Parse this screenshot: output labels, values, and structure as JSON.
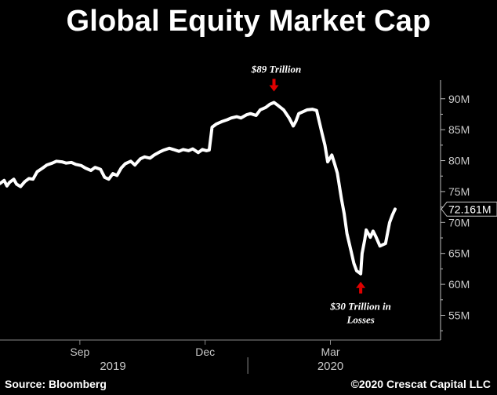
{
  "title": "Global Equity Market Cap",
  "source": "Source: Bloomberg",
  "copyright": "©2020 Crescat Capital LLC",
  "chart_data": {
    "type": "line",
    "title": "Global Equity Market Cap",
    "ylim": [
      51,
      92
    ],
    "y_ticks": [
      {
        "value": 90,
        "label": "90M"
      },
      {
        "value": 85,
        "label": "85M"
      },
      {
        "value": 80,
        "label": "80M"
      },
      {
        "value": 75,
        "label": "75M"
      },
      {
        "value": 70,
        "label": "70M"
      },
      {
        "value": 65,
        "label": "65M"
      },
      {
        "value": 60,
        "label": "60M"
      },
      {
        "value": 55,
        "label": "55M"
      }
    ],
    "x_domain": [
      "2019-07-05",
      "2020-05-20"
    ],
    "x_ticks": [
      {
        "date": "2019-09-01",
        "label": "Sep"
      },
      {
        "date": "2019-12-01",
        "label": "Dec"
      },
      {
        "date": "2020-03-01",
        "label": "Mar"
      }
    ],
    "year_labels": [
      {
        "date": "2019-09-25",
        "label": "2019"
      },
      {
        "date": "2020-03-01",
        "label": "2020"
      }
    ],
    "year_divider": "2020-01-01",
    "last_value_label": "72.161M",
    "last_value": 72.161,
    "series": [
      {
        "color": "#ffffff",
        "points": [
          [
            "2019-07-05",
            76.3
          ],
          [
            "2019-07-08",
            76.8
          ],
          [
            "2019-07-10",
            75.9
          ],
          [
            "2019-07-12",
            76.5
          ],
          [
            "2019-07-15",
            77.0
          ],
          [
            "2019-07-17",
            76.2
          ],
          [
            "2019-07-20",
            75.8
          ],
          [
            "2019-07-23",
            76.6
          ],
          [
            "2019-07-26",
            77.1
          ],
          [
            "2019-07-29",
            77.0
          ],
          [
            "2019-08-01",
            78.2
          ],
          [
            "2019-08-05",
            78.8
          ],
          [
            "2019-08-08",
            79.3
          ],
          [
            "2019-08-12",
            79.6
          ],
          [
            "2019-08-15",
            79.9
          ],
          [
            "2019-08-19",
            79.8
          ],
          [
            "2019-08-22",
            79.6
          ],
          [
            "2019-08-26",
            79.7
          ],
          [
            "2019-08-29",
            79.4
          ],
          [
            "2019-09-02",
            79.2
          ],
          [
            "2019-09-05",
            78.8
          ],
          [
            "2019-09-09",
            78.4
          ],
          [
            "2019-09-12",
            78.9
          ],
          [
            "2019-09-16",
            78.6
          ],
          [
            "2019-09-19",
            77.3
          ],
          [
            "2019-09-22",
            77.0
          ],
          [
            "2019-09-25",
            77.9
          ],
          [
            "2019-09-28",
            77.6
          ],
          [
            "2019-10-01",
            78.8
          ],
          [
            "2019-10-04",
            79.5
          ],
          [
            "2019-10-08",
            79.9
          ],
          [
            "2019-10-11",
            79.3
          ],
          [
            "2019-10-15",
            80.3
          ],
          [
            "2019-10-18",
            80.6
          ],
          [
            "2019-10-22",
            80.4
          ],
          [
            "2019-10-25",
            80.9
          ],
          [
            "2019-10-29",
            81.4
          ],
          [
            "2019-11-01",
            81.7
          ],
          [
            "2019-11-05",
            82.0
          ],
          [
            "2019-11-08",
            81.8
          ],
          [
            "2019-11-12",
            81.5
          ],
          [
            "2019-11-15",
            81.8
          ],
          [
            "2019-11-19",
            81.6
          ],
          [
            "2019-11-22",
            81.9
          ],
          [
            "2019-11-26",
            81.3
          ],
          [
            "2019-11-29",
            81.8
          ],
          [
            "2019-12-02",
            81.6
          ],
          [
            "2019-12-04",
            81.7
          ],
          [
            "2019-12-06",
            85.4
          ],
          [
            "2019-12-09",
            85.9
          ],
          [
            "2019-12-13",
            86.3
          ],
          [
            "2019-12-17",
            86.6
          ],
          [
            "2019-12-20",
            86.9
          ],
          [
            "2019-12-24",
            87.1
          ],
          [
            "2019-12-27",
            86.9
          ],
          [
            "2019-12-31",
            87.4
          ],
          [
            "2020-01-03",
            87.6
          ],
          [
            "2020-01-07",
            87.3
          ],
          [
            "2020-01-10",
            88.2
          ],
          [
            "2020-01-14",
            88.6
          ],
          [
            "2020-01-17",
            89.1
          ],
          [
            "2020-01-20",
            89.4
          ],
          [
            "2020-01-23",
            88.9
          ],
          [
            "2020-01-27",
            88.2
          ],
          [
            "2020-01-31",
            86.9
          ],
          [
            "2020-02-03",
            85.6
          ],
          [
            "2020-02-05",
            86.4
          ],
          [
            "2020-02-07",
            87.6
          ],
          [
            "2020-02-10",
            87.9
          ],
          [
            "2020-02-13",
            88.2
          ],
          [
            "2020-02-17",
            88.3
          ],
          [
            "2020-02-20",
            88.1
          ],
          [
            "2020-02-24",
            84.3
          ],
          [
            "2020-02-26",
            82.5
          ],
          [
            "2020-02-28",
            79.8
          ],
          [
            "2020-03-02",
            80.9
          ],
          [
            "2020-03-04",
            79.5
          ],
          [
            "2020-03-06",
            78.0
          ],
          [
            "2020-03-09",
            73.8
          ],
          [
            "2020-03-11",
            71.4
          ],
          [
            "2020-03-13",
            68.2
          ],
          [
            "2020-03-16",
            65.4
          ],
          [
            "2020-03-18",
            63.4
          ],
          [
            "2020-03-20",
            62.2
          ],
          [
            "2020-03-23",
            61.7
          ],
          [
            "2020-03-24",
            65.0
          ],
          [
            "2020-03-26",
            67.3
          ],
          [
            "2020-03-27",
            68.8
          ],
          [
            "2020-03-30",
            67.6
          ],
          [
            "2020-04-01",
            68.6
          ],
          [
            "2020-04-03",
            67.7
          ],
          [
            "2020-04-06",
            66.2
          ],
          [
            "2020-04-08",
            66.4
          ],
          [
            "2020-04-10",
            66.6
          ],
          [
            "2020-04-13",
            70.0
          ],
          [
            "2020-04-15",
            71.2
          ],
          [
            "2020-04-17",
            72.161
          ]
        ]
      }
    ],
    "annotations": [
      {
        "text": "$89 Trillion",
        "date": "2020-01-20",
        "value": 89.4,
        "position": "above"
      },
      {
        "text": "$30 Trillion in Losses",
        "lines": [
          "$30 Trillion in",
          "Losses"
        ],
        "date": "2020-03-23",
        "value": 61.7,
        "position": "below"
      }
    ],
    "annotation_arrow_color": "#e00000"
  }
}
